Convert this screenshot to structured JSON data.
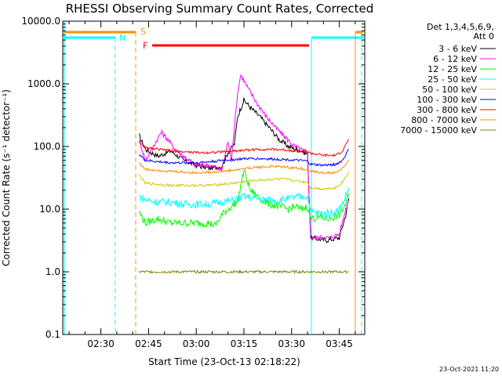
{
  "chart_data": {
    "type": "line",
    "title": "RHESSI Observing Summary Count Rates, Corrected",
    "xlabel": "Start Time (23-Oct-13 02:18:22)",
    "ylabel": "Corrected Count Rate (s⁻¹ detector⁻¹)",
    "yscale": "log",
    "ylim": [
      0.1,
      10000
    ],
    "y_tick_labels": [
      "0.1",
      "1.0",
      "10.0",
      "100.0",
      "1000.0",
      "10000.0"
    ],
    "x_minutes_range": [
      0,
      95
    ],
    "x_tick_labels": [
      "02:30",
      "02:45",
      "03:00",
      "03:15",
      "03:30",
      "03:45"
    ],
    "legend_title": "Det 1,3,4,5,6,9,",
    "legend_subtitle": "Att 0",
    "legend_placement": "right",
    "footer": "23-Oct-2021 11:20",
    "series": [
      {
        "name": "3 - 6 keV",
        "color": "#000000",
        "points": [
          [
            24,
            150
          ],
          [
            26,
            90
          ],
          [
            30,
            70
          ],
          [
            34,
            85
          ],
          [
            38,
            60
          ],
          [
            42,
            50
          ],
          [
            46,
            45
          ],
          [
            50,
            48
          ],
          [
            52,
            80
          ],
          [
            54,
            110
          ],
          [
            55,
            300
          ],
          [
            57,
            550
          ],
          [
            59,
            420
          ],
          [
            62,
            300
          ],
          [
            65,
            200
          ],
          [
            68,
            130
          ],
          [
            71,
            100
          ],
          [
            75,
            85
          ],
          [
            77,
            75
          ],
          [
            78,
            3.5
          ],
          [
            83,
            3.2
          ],
          [
            87,
            3.5
          ],
          [
            89,
            8
          ],
          [
            90,
            15
          ]
        ]
      },
      {
        "name": "6 - 12 keV",
        "color": "#ff00ff",
        "points": [
          [
            24,
            130
          ],
          [
            26,
            60
          ],
          [
            28,
            90
          ],
          [
            31,
            170
          ],
          [
            33,
            130
          ],
          [
            35,
            95
          ],
          [
            38,
            70
          ],
          [
            42,
            50
          ],
          [
            46,
            50
          ],
          [
            50,
            42
          ],
          [
            52,
            120
          ],
          [
            53,
            60
          ],
          [
            55,
            700
          ],
          [
            56,
            1400
          ],
          [
            58,
            900
          ],
          [
            61,
            500
          ],
          [
            64,
            300
          ],
          [
            67,
            200
          ],
          [
            70,
            140
          ],
          [
            73,
            100
          ],
          [
            76,
            85
          ],
          [
            77,
            80
          ],
          [
            78,
            3.5
          ],
          [
            84,
            3.5
          ],
          [
            87,
            4
          ],
          [
            89,
            10
          ],
          [
            90,
            14
          ]
        ]
      },
      {
        "name": "12 - 25 keV",
        "color": "#00ff00",
        "points": [
          [
            24,
            9
          ],
          [
            26,
            6
          ],
          [
            30,
            7
          ],
          [
            34,
            6
          ],
          [
            38,
            6
          ],
          [
            42,
            6
          ],
          [
            46,
            6
          ],
          [
            48,
            5.5
          ],
          [
            50,
            8
          ],
          [
            52,
            10
          ],
          [
            55,
            13
          ],
          [
            57,
            42
          ],
          [
            59,
            20
          ],
          [
            62,
            15
          ],
          [
            65,
            12
          ],
          [
            68,
            11
          ],
          [
            71,
            10
          ],
          [
            73,
            11
          ],
          [
            75,
            10
          ],
          [
            77,
            11
          ],
          [
            78,
            7
          ],
          [
            80,
            7.5
          ],
          [
            84,
            7
          ],
          [
            87,
            8
          ],
          [
            89,
            12
          ],
          [
            90,
            18
          ]
        ]
      },
      {
        "name": "25 - 50 keV",
        "color": "#00ffff",
        "points": [
          [
            24,
            16
          ],
          [
            26,
            14
          ],
          [
            30,
            13
          ],
          [
            34,
            13
          ],
          [
            38,
            12
          ],
          [
            42,
            12
          ],
          [
            46,
            12
          ],
          [
            50,
            13
          ],
          [
            54,
            14
          ],
          [
            57,
            16
          ],
          [
            60,
            15
          ],
          [
            64,
            14
          ],
          [
            68,
            14
          ],
          [
            72,
            15
          ],
          [
            76,
            16
          ],
          [
            77,
            16
          ],
          [
            78,
            9
          ],
          [
            82,
            8.5
          ],
          [
            86,
            9
          ],
          [
            88,
            12
          ],
          [
            90,
            22
          ]
        ]
      },
      {
        "name": "50 - 100 keV",
        "color": "#cccc00",
        "points": [
          [
            24,
            35
          ],
          [
            26,
            26
          ],
          [
            30,
            25
          ],
          [
            34,
            24
          ],
          [
            38,
            24
          ],
          [
            42,
            24
          ],
          [
            46,
            24
          ],
          [
            50,
            25
          ],
          [
            54,
            26
          ],
          [
            58,
            28
          ],
          [
            62,
            29
          ],
          [
            66,
            30
          ],
          [
            70,
            30
          ],
          [
            74,
            28
          ],
          [
            77,
            27
          ],
          [
            78,
            22
          ],
          [
            82,
            21
          ],
          [
            86,
            22
          ],
          [
            88,
            27
          ],
          [
            90,
            40
          ]
        ]
      },
      {
        "name": "100 - 300 keV",
        "color": "#0000ff",
        "points": [
          [
            24,
            75
          ],
          [
            26,
            60
          ],
          [
            30,
            57
          ],
          [
            34,
            55
          ],
          [
            38,
            55
          ],
          [
            42,
            55
          ],
          [
            46,
            57
          ],
          [
            50,
            60
          ],
          [
            54,
            62
          ],
          [
            58,
            64
          ],
          [
            62,
            64
          ],
          [
            66,
            63
          ],
          [
            70,
            62
          ],
          [
            74,
            60
          ],
          [
            77,
            58
          ],
          [
            78,
            52
          ],
          [
            82,
            50
          ],
          [
            86,
            52
          ],
          [
            88,
            60
          ],
          [
            90,
            90
          ]
        ]
      },
      {
        "name": "300 - 800 keV",
        "color": "#ff0000",
        "points": [
          [
            24,
            120
          ],
          [
            26,
            95
          ],
          [
            30,
            90
          ],
          [
            34,
            85
          ],
          [
            38,
            82
          ],
          [
            42,
            80
          ],
          [
            46,
            80
          ],
          [
            50,
            82
          ],
          [
            54,
            85
          ],
          [
            58,
            88
          ],
          [
            62,
            90
          ],
          [
            66,
            90
          ],
          [
            70,
            88
          ],
          [
            74,
            85
          ],
          [
            77,
            82
          ],
          [
            78,
            78
          ],
          [
            82,
            72
          ],
          [
            86,
            72
          ],
          [
            88,
            85
          ],
          [
            90,
            130
          ]
        ]
      },
      {
        "name": "800 - 7000 keV",
        "color": "#ff8c00",
        "points": [
          [
            24,
            55
          ],
          [
            26,
            43
          ],
          [
            30,
            42
          ],
          [
            34,
            40
          ],
          [
            38,
            39
          ],
          [
            42,
            38
          ],
          [
            46,
            39
          ],
          [
            50,
            40
          ],
          [
            54,
            42
          ],
          [
            58,
            45
          ],
          [
            62,
            47
          ],
          [
            66,
            48
          ],
          [
            70,
            47
          ],
          [
            74,
            45
          ],
          [
            77,
            43
          ],
          [
            78,
            40
          ],
          [
            82,
            38
          ],
          [
            86,
            38
          ],
          [
            88,
            45
          ],
          [
            90,
            60
          ]
        ]
      },
      {
        "name": "7000 - 15000 keV",
        "color": "#808000",
        "points": [
          [
            24,
            1.0
          ],
          [
            36,
            1.0
          ],
          [
            55,
            1.0
          ],
          [
            77,
            1.0
          ],
          [
            89,
            1.0
          ],
          [
            90,
            1.0
          ]
        ]
      }
    ],
    "annotations": [
      {
        "label": "S",
        "color": "#ff8c00"
      },
      {
        "label": "N",
        "color": "#00ffff"
      },
      {
        "label": "F",
        "color": "#ff0000"
      }
    ]
  }
}
